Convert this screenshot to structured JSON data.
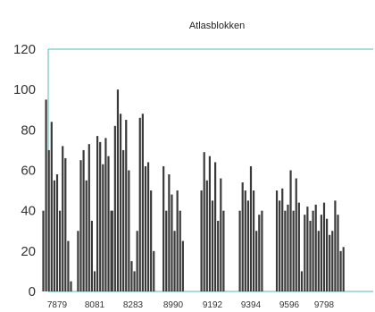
{
  "chart_data": {
    "type": "bar",
    "title": "Atlasblokken",
    "xlabel": "",
    "ylabel": "",
    "ylim": [
      0,
      120
    ],
    "yticks": [
      0,
      20,
      40,
      60,
      80,
      100,
      120
    ],
    "xtick_labels": [
      "7879",
      "8081",
      "8283",
      "8990",
      "9192",
      "9394",
      "9596",
      "9798"
    ],
    "groups": [
      {
        "name": "7879",
        "values": [
          40,
          95,
          70,
          84,
          55,
          58,
          40,
          72,
          66,
          25,
          5
        ]
      },
      {
        "name": "8081",
        "values": [
          30,
          65,
          70,
          55,
          73,
          35,
          10,
          77,
          74,
          63,
          76,
          67,
          40
        ]
      },
      {
        "name": "8283",
        "values": [
          40,
          82,
          100,
          88,
          70,
          85,
          60,
          15,
          10,
          30,
          86,
          88,
          62,
          64,
          50,
          20
        ]
      },
      {
        "name": "8990",
        "values": [
          62,
          40,
          58,
          48,
          30,
          50,
          40,
          25
        ]
      },
      {
        "name": "9192",
        "values": [
          50,
          69,
          55,
          67,
          45,
          64,
          35,
          56,
          40
        ]
      },
      {
        "name": "9394",
        "values": [
          40,
          54,
          50,
          45,
          62,
          50,
          30,
          38,
          40
        ]
      },
      {
        "name": "9596",
        "values": [
          50,
          45,
          51,
          40,
          43,
          60,
          40,
          56,
          44,
          10
        ]
      },
      {
        "name": "9798",
        "values": [
          38,
          42,
          35,
          40,
          43,
          30,
          38,
          44,
          36,
          28,
          30,
          45,
          38,
          20,
          22
        ]
      }
    ]
  }
}
